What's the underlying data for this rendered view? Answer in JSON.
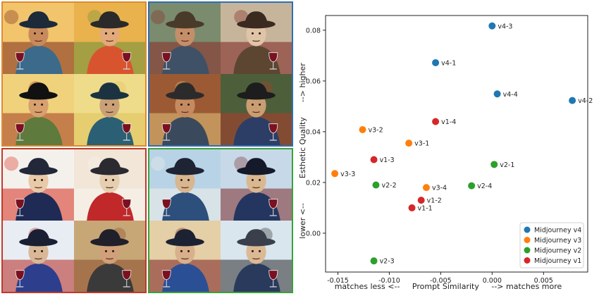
{
  "image_grids": [
    {
      "id": "v1",
      "color": "#e08a2e"
    },
    {
      "id": "v4",
      "color": "#2f6eb5"
    },
    {
      "id": "v2",
      "color": "#c0392b"
    },
    {
      "id": "v3",
      "color": "#3aa23a"
    }
  ],
  "chart_data": {
    "type": "scatter",
    "xlabel": "matches less <--     Prompt Similarity     --> matches more",
    "ylabel": "lower <--          Esthetic Quality      --> higher",
    "xlim": [
      -0.0162,
      0.0093
    ],
    "ylim": [
      -0.0153,
      0.0858
    ],
    "xticks": [
      -0.015,
      -0.01,
      -0.005,
      0.0,
      0.005
    ],
    "xtick_labels": [
      "-0.015",
      "-0.010",
      "-0.005",
      "0.000",
      "0.005"
    ],
    "yticks": [
      0.0,
      0.02,
      0.04,
      0.06,
      0.08
    ],
    "ytick_labels": [
      "0.00",
      "0.02",
      "0.04",
      "0.06",
      "0.08"
    ],
    "grid": false,
    "legend_position": "bottom-right",
    "series": [
      {
        "name": "Midjourney v4",
        "color": "#1f77b4",
        "points": [
          {
            "label": "v4-3",
            "x": 0.0,
            "y": 0.0817
          },
          {
            "label": "v4-1",
            "x": -0.0055,
            "y": 0.0672
          },
          {
            "label": "v4-4",
            "x": 0.0005,
            "y": 0.0549
          },
          {
            "label": "v4-2",
            "x": 0.0078,
            "y": 0.0523
          }
        ]
      },
      {
        "name": "Midjourney v3",
        "color": "#ff7f0e",
        "points": [
          {
            "label": "v3-2",
            "x": -0.0126,
            "y": 0.0408
          },
          {
            "label": "v3-1",
            "x": -0.0081,
            "y": 0.0355
          },
          {
            "label": "v3-3",
            "x": -0.0153,
            "y": 0.0235
          },
          {
            "label": "v3-4",
            "x": -0.0064,
            "y": 0.018
          }
        ]
      },
      {
        "name": "Midjourney v2",
        "color": "#2ca02c",
        "points": [
          {
            "label": "v2-1",
            "x": 0.0002,
            "y": 0.0271
          },
          {
            "label": "v2-2",
            "x": -0.0113,
            "y": 0.019
          },
          {
            "label": "v2-4",
            "x": -0.002,
            "y": 0.0187
          },
          {
            "label": "v2-3",
            "x": -0.0115,
            "y": -0.0109
          }
        ]
      },
      {
        "name": "Midjourney v1",
        "color": "#d62728",
        "points": [
          {
            "label": "v1-4",
            "x": -0.0055,
            "y": 0.044
          },
          {
            "label": "v1-3",
            "x": -0.0115,
            "y": 0.029
          },
          {
            "label": "v1-2",
            "x": -0.0069,
            "y": 0.013
          },
          {
            "label": "v1-1",
            "x": -0.0078,
            "y": 0.01
          }
        ]
      }
    ],
    "legend_order": [
      "Midjourney v4",
      "Midjourney v3",
      "Midjourney v2",
      "Midjourney v1"
    ]
  }
}
